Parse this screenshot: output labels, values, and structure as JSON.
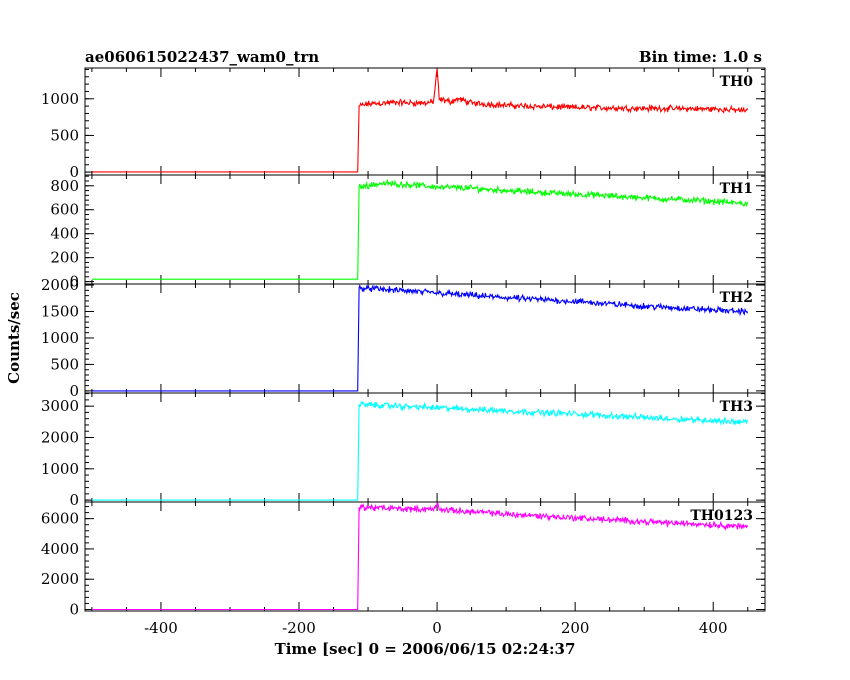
{
  "chart_data": {
    "type": "line",
    "title": "ae060615022437_wam0_trn",
    "subtitle": "Bin time: 1.0 s",
    "xlabel": "Time [sec] 0 = 2006/06/15 02:24:37",
    "ylabel": "Counts/sec",
    "xlim": [
      -510,
      475
    ],
    "xticks": [
      -400,
      -200,
      0,
      200,
      400
    ],
    "panels": [
      {
        "name": "TH0",
        "color": "#ff0000",
        "ylim": [
          -40,
          1420
        ],
        "yticks": [
          0,
          500,
          1000
        ],
        "points": [
          [
            -500,
            2
          ],
          [
            -115,
            2
          ],
          [
            -113,
            900
          ],
          [
            -100,
            930
          ],
          [
            -60,
            950
          ],
          [
            -20,
            940
          ],
          [
            -5,
            960
          ],
          [
            0,
            1420
          ],
          [
            3,
            990
          ],
          [
            20,
            960
          ],
          [
            30,
            1000
          ],
          [
            50,
            940
          ],
          [
            100,
            910
          ],
          [
            200,
            880
          ],
          [
            300,
            870
          ],
          [
            400,
            860
          ],
          [
            450,
            840
          ]
        ]
      },
      {
        "name": "TH1",
        "color": "#00ff00",
        "ylim": [
          -20,
          890
        ],
        "yticks": [
          0,
          200,
          400,
          600,
          800
        ],
        "points": [
          [
            -500,
            20
          ],
          [
            -115,
            20
          ],
          [
            -113,
            790
          ],
          [
            -80,
            820
          ],
          [
            -40,
            810
          ],
          [
            0,
            790
          ],
          [
            50,
            780
          ],
          [
            100,
            760
          ],
          [
            200,
            730
          ],
          [
            300,
            700
          ],
          [
            400,
            670
          ],
          [
            450,
            650
          ]
        ]
      },
      {
        "name": "TH2",
        "color": "#0000ff",
        "ylim": [
          -40,
          2020
        ],
        "yticks": [
          0,
          500,
          1000,
          1500,
          2000
        ],
        "points": [
          [
            -500,
            0
          ],
          [
            -115,
            0
          ],
          [
            -113,
            1950
          ],
          [
            -80,
            1920
          ],
          [
            0,
            1850
          ],
          [
            100,
            1760
          ],
          [
            200,
            1690
          ],
          [
            300,
            1600
          ],
          [
            400,
            1530
          ],
          [
            450,
            1500
          ]
        ]
      },
      {
        "name": "TH3",
        "color": "#00ffff",
        "ylim": [
          -60,
          3420
        ],
        "yticks": [
          0,
          1000,
          2000,
          3000
        ],
        "points": [
          [
            -500,
            0
          ],
          [
            -115,
            0
          ],
          [
            -113,
            3060
          ],
          [
            -80,
            3020
          ],
          [
            0,
            2950
          ],
          [
            100,
            2850
          ],
          [
            200,
            2750
          ],
          [
            300,
            2640
          ],
          [
            400,
            2540
          ],
          [
            450,
            2490
          ]
        ]
      },
      {
        "name": "TH0123",
        "color": "#ff00ff",
        "ylim": [
          -100,
          7100
        ],
        "yticks": [
          0,
          2000,
          4000,
          6000
        ],
        "points": [
          [
            -500,
            0
          ],
          [
            -115,
            0
          ],
          [
            -113,
            6750
          ],
          [
            -80,
            6700
          ],
          [
            -5,
            6600
          ],
          [
            0,
            6950
          ],
          [
            5,
            6600
          ],
          [
            100,
            6300
          ],
          [
            200,
            6050
          ],
          [
            300,
            5800
          ],
          [
            400,
            5600
          ],
          [
            450,
            5450
          ]
        ]
      }
    ]
  }
}
